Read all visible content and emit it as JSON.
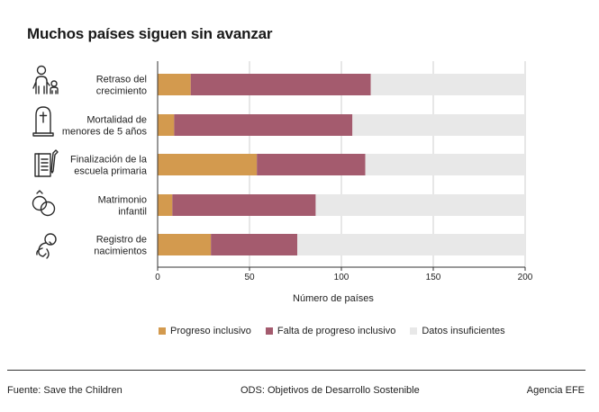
{
  "title": "Muchos países siguen sin avanzar",
  "colors": {
    "progreso": "#d39a4e",
    "falta": "#a45b6e",
    "datos": "#e8e8e8",
    "axis": "#333333",
    "grid": "#cfcfcf"
  },
  "chart_data": {
    "type": "bar",
    "orientation": "horizontal",
    "stacked": true,
    "title": "Muchos países siguen sin avanzar",
    "xlabel": "Número de países",
    "ylabel": "",
    "xlim": [
      0,
      200
    ],
    "xticks": [
      0,
      50,
      100,
      150,
      200
    ],
    "categories": [
      {
        "lines": [
          "Retraso del",
          "crecimiento"
        ],
        "icon": "child-growth-icon"
      },
      {
        "lines": [
          "Mortalidad de",
          "menores de 5 años"
        ],
        "icon": "gravestone-icon"
      },
      {
        "lines": [
          "Finalización de la",
          "escuela primaria"
        ],
        "icon": "notebook-icon"
      },
      {
        "lines": [
          "Matrimonio",
          "infantil"
        ],
        "icon": "wedding-rings-icon"
      },
      {
        "lines": [
          "Registro de",
          "nacimientos"
        ],
        "icon": "baby-icon"
      }
    ],
    "series": [
      {
        "name": "Progreso inclusivo",
        "color_key": "progreso",
        "values": [
          18,
          9,
          54,
          8,
          29
        ]
      },
      {
        "name": "Falta de progreso inclusivo",
        "color_key": "falta",
        "values": [
          98,
          97,
          59,
          78,
          47
        ]
      },
      {
        "name": "Datos insuficientes",
        "color_key": "datos",
        "values": [
          84,
          94,
          87,
          114,
          124
        ]
      }
    ],
    "grid": true,
    "legend_position": "bottom"
  },
  "legend": [
    {
      "label": "Progreso inclusivo",
      "color_key": "progreso"
    },
    {
      "label": "Falta de progreso inclusivo",
      "color_key": "falta"
    },
    {
      "label": "Datos insuficientes",
      "color_key": "datos"
    }
  ],
  "footer": {
    "source": "Fuente: Save the Children",
    "note": "ODS: Objetivos de Desarrollo Sostenible",
    "agency": "Agencia EFE"
  }
}
